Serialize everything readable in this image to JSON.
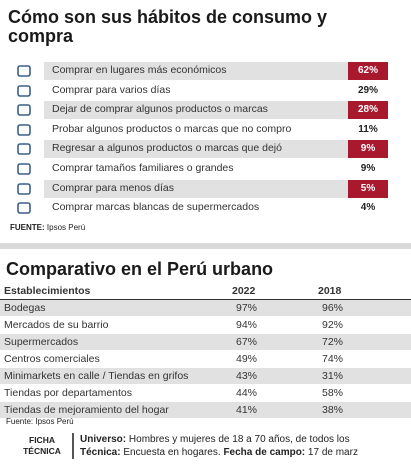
{
  "section1": {
    "title": "Cómo son sus hábitos de consumo y compra",
    "rows": [
      {
        "label": "Comprar en lugares más económicos",
        "value": "62%"
      },
      {
        "label": "Comprar para varios días",
        "value": "29%"
      },
      {
        "label": "Dejar de comprar algunos productos o marcas",
        "value": "28%"
      },
      {
        "label": "Probar algunos productos o marcas que no compro",
        "value": "11%"
      },
      {
        "label": "Regresar a algunos productos o marcas que dejó",
        "value": "9%"
      },
      {
        "label": "Comprar tamaños familiares o grandes",
        "value": "9%"
      },
      {
        "label": "Comprar para menos días",
        "value": "5%"
      },
      {
        "label": "Comprar marcas blancas de supermercados",
        "value": "4%"
      }
    ],
    "source_label": "FUENTE:",
    "source": "Ipsos Perú"
  },
  "section2": {
    "title": "Comparativo en el Perú urbano",
    "header": [
      "Establecimientos",
      "2022",
      "2018"
    ],
    "rows": [
      [
        "Bodegas",
        "97%",
        "96%"
      ],
      [
        "Mercados de su barrio",
        "94%",
        "92%"
      ],
      [
        "Supermercados",
        "67%",
        "72%"
      ],
      [
        "Centros comerciales",
        "49%",
        "74%"
      ],
      [
        "Minimarkets en calle / Tiendas en grifos",
        "43%",
        "31%"
      ],
      [
        "Tiendas por departamentos",
        "44%",
        "58%"
      ],
      [
        "Tiendas de mejoramiento del hogar",
        "41%",
        "38%"
      ]
    ],
    "source": "Fuente: Ipsos Perú"
  },
  "footer": {
    "label": "FICHA TÉCNICA",
    "lines": [
      {
        "key": "Universo:",
        "text": "Hombres y mujeres de 18 a 70 años, de todos los"
      },
      {
        "key": "Técnica:",
        "text": "Encuesta en hogares.",
        "key2": "Fecha de campo:",
        "text2": "17 de marz"
      }
    ]
  }
}
